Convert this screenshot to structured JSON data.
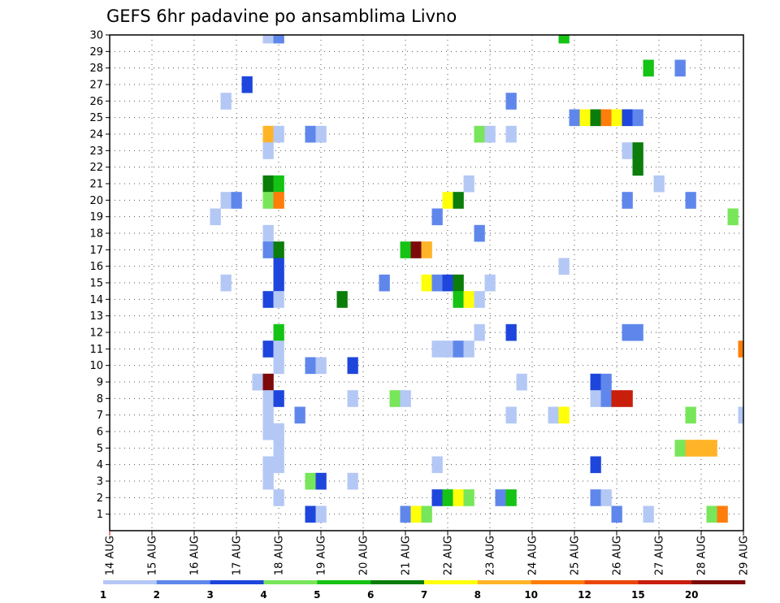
{
  "chart_data": {
    "type": "heatmap",
    "title": "GEFS 6hr padavine po ansamblima Livno",
    "xlabel": "",
    "ylabel": "",
    "x_tick_labels": [
      "14 AUG",
      "15 AUG",
      "16 AUG",
      "17 AUG",
      "18 AUG",
      "19 AUG",
      "20 AUG",
      "21 AUG",
      "22 AUG",
      "23 AUG",
      "24 AUG",
      "25 AUG",
      "26 AUG",
      "27 AUG",
      "28 AUG",
      "29 AUG"
    ],
    "y_tick_labels": [
      "1",
      "2",
      "3",
      "4",
      "5",
      "6",
      "7",
      "8",
      "9",
      "10",
      "11",
      "12",
      "13",
      "14",
      "15",
      "16",
      "17",
      "18",
      "19",
      "20",
      "21",
      "22",
      "23",
      "24",
      "25",
      "26",
      "27",
      "28",
      "29",
      "30"
    ],
    "xlim": [
      "14 AUG 00z",
      "29 AUG 00z"
    ],
    "ylim": [
      0,
      30
    ],
    "grid": true,
    "legend": {
      "placement": "bottom",
      "labels": [
        "1",
        "2",
        "3",
        "4",
        "5",
        "6",
        "7",
        "8",
        "10",
        "12",
        "15",
        "20"
      ],
      "colors": [
        "#b4c8f5",
        "#5f87eb",
        "#1e46dc",
        "#78e65a",
        "#14c314",
        "#0a7d0a",
        "#ffff0a",
        "#ffb428",
        "#ff7d0a",
        "#eb460a",
        "#c81e0a",
        "#7d0a0a"
      ]
    },
    "time_step": "6hr",
    "cells": [
      {
        "x": "17 AUG 18z",
        "member": 30,
        "value": 1
      },
      {
        "x": "18 AUG 00z",
        "member": 30,
        "value": 2
      },
      {
        "x": "24 AUG 18z",
        "member": 30,
        "value": 5
      },
      {
        "x": "26 AUG 18z",
        "member": 28,
        "value": 5
      },
      {
        "x": "27 AUG 12z",
        "member": 28,
        "value": 2
      },
      {
        "x": "17 AUG 06z",
        "member": 27,
        "value": 3
      },
      {
        "x": "16 AUG 18z",
        "member": 26,
        "value": 1
      },
      {
        "x": "23 AUG 12z",
        "member": 26,
        "value": 2
      },
      {
        "x": "25 AUG 00z",
        "member": 25,
        "value": 2
      },
      {
        "x": "25 AUG 06z",
        "member": 25,
        "value": 7
      },
      {
        "x": "25 AUG 12z",
        "member": 25,
        "value": 6
      },
      {
        "x": "25 AUG 18z",
        "member": 25,
        "value": 10
      },
      {
        "x": "26 AUG 00z",
        "member": 25,
        "value": 7
      },
      {
        "x": "26 AUG 06z",
        "member": 25,
        "value": 3
      },
      {
        "x": "26 AUG 12z",
        "member": 25,
        "value": 2
      },
      {
        "x": "17 AUG 18z",
        "member": 24,
        "value": 8
      },
      {
        "x": "18 AUG 00z",
        "member": 24,
        "value": 1
      },
      {
        "x": "18 AUG 18z",
        "member": 24,
        "value": 2
      },
      {
        "x": "19 AUG 00z",
        "member": 24,
        "value": 1
      },
      {
        "x": "22 AUG 18z",
        "member": 24,
        "value": 4
      },
      {
        "x": "23 AUG 00z",
        "member": 24,
        "value": 1
      },
      {
        "x": "23 AUG 12z",
        "member": 24,
        "value": 1
      },
      {
        "x": "17 AUG 18z",
        "member": 23,
        "value": 1
      },
      {
        "x": "26 AUG 06z",
        "member": 23,
        "value": 1
      },
      {
        "x": "26 AUG 12z",
        "member": 23,
        "value": 6
      },
      {
        "x": "26 AUG 12z",
        "member": 22,
        "value": 6
      },
      {
        "x": "17 AUG 18z",
        "member": 21,
        "value": 6
      },
      {
        "x": "18 AUG 00z",
        "member": 21,
        "value": 5
      },
      {
        "x": "22 AUG 12z",
        "member": 21,
        "value": 1
      },
      {
        "x": "27 AUG 00z",
        "member": 21,
        "value": 1
      },
      {
        "x": "16 AUG 18z",
        "member": 20,
        "value": 1
      },
      {
        "x": "17 AUG 00z",
        "member": 20,
        "value": 2
      },
      {
        "x": "17 AUG 18z",
        "member": 20,
        "value": 4
      },
      {
        "x": "18 AUG 00z",
        "member": 20,
        "value": 10
      },
      {
        "x": "22 AUG 00z",
        "member": 20,
        "value": 7
      },
      {
        "x": "22 AUG 06z",
        "member": 20,
        "value": 6
      },
      {
        "x": "26 AUG 06z",
        "member": 20,
        "value": 2
      },
      {
        "x": "27 AUG 18z",
        "member": 20,
        "value": 2
      },
      {
        "x": "21 AUG 18z",
        "member": 19,
        "value": 2
      },
      {
        "x": "16 AUG 12z",
        "member": 19,
        "value": 1
      },
      {
        "x": "28 AUG 18z",
        "member": 19,
        "value": 4
      },
      {
        "x": "17 AUG 18z",
        "member": 18,
        "value": 1
      },
      {
        "x": "22 AUG 18z",
        "member": 18,
        "value": 2
      },
      {
        "x": "17 AUG 18z",
        "member": 17,
        "value": 2
      },
      {
        "x": "18 AUG 00z",
        "member": 17,
        "value": 6
      },
      {
        "x": "21 AUG 00z",
        "member": 17,
        "value": 5
      },
      {
        "x": "21 AUG 06z",
        "member": 17,
        "value": 20
      },
      {
        "x": "21 AUG 12z",
        "member": 17,
        "value": 8
      },
      {
        "x": "18 AUG 00z",
        "member": 16,
        "value": 3
      },
      {
        "x": "24 AUG 18z",
        "member": 16,
        "value": 1
      },
      {
        "x": "18 AUG 00z",
        "member": 15,
        "value": 3
      },
      {
        "x": "16 AUG 18z",
        "member": 15,
        "value": 1
      },
      {
        "x": "20 AUG 12z",
        "member": 15,
        "value": 2
      },
      {
        "x": "21 AUG 12z",
        "member": 15,
        "value": 7
      },
      {
        "x": "21 AUG 18z",
        "member": 15,
        "value": 2
      },
      {
        "x": "22 AUG 00z",
        "member": 15,
        "value": 3
      },
      {
        "x": "22 AUG 06z",
        "member": 15,
        "value": 6
      },
      {
        "x": "23 AUG 00z",
        "member": 15,
        "value": 1
      },
      {
        "x": "17 AUG 18z",
        "member": 14,
        "value": 3
      },
      {
        "x": "18 AUG 00z",
        "member": 14,
        "value": 1
      },
      {
        "x": "19 AUG 12z",
        "member": 14,
        "value": 6
      },
      {
        "x": "22 AUG 06z",
        "member": 14,
        "value": 5
      },
      {
        "x": "22 AUG 12z",
        "member": 14,
        "value": 7
      },
      {
        "x": "22 AUG 18z",
        "member": 14,
        "value": 1
      },
      {
        "x": "18 AUG 00z",
        "member": 12,
        "value": 5
      },
      {
        "x": "22 AUG 18z",
        "member": 12,
        "value": 1
      },
      {
        "x": "23 AUG 12z",
        "member": 12,
        "value": 3
      },
      {
        "x": "26 AUG 06z",
        "member": 12,
        "value": 2
      },
      {
        "x": "26 AUG 12z",
        "member": 12,
        "value": 2
      },
      {
        "x": "17 AUG 18z",
        "member": 11,
        "value": 3
      },
      {
        "x": "18 AUG 00z",
        "member": 11,
        "value": 1
      },
      {
        "x": "21 AUG 18z",
        "member": 11,
        "value": 1
      },
      {
        "x": "22 AUG 00z",
        "member": 11,
        "value": 1
      },
      {
        "x": "22 AUG 06z",
        "member": 11,
        "value": 2
      },
      {
        "x": "22 AUG 12z",
        "member": 11,
        "value": 1
      },
      {
        "x": "29 AUG 00z",
        "member": 11,
        "value": 10
      },
      {
        "x": "18 AUG 00z",
        "member": 10,
        "value": 1
      },
      {
        "x": "18 AUG 18z",
        "member": 10,
        "value": 2
      },
      {
        "x": "19 AUG 00z",
        "member": 10,
        "value": 1
      },
      {
        "x": "19 AUG 18z",
        "member": 10,
        "value": 3
      },
      {
        "x": "17 AUG 12z",
        "member": 9,
        "value": 1
      },
      {
        "x": "17 AUG 18z",
        "member": 9,
        "value": 20
      },
      {
        "x": "23 AUG 18z",
        "member": 9,
        "value": 1
      },
      {
        "x": "25 AUG 12z",
        "member": 9,
        "value": 3
      },
      {
        "x": "25 AUG 18z",
        "member": 9,
        "value": 2
      },
      {
        "x": "17 AUG 18z",
        "member": 8,
        "value": 1
      },
      {
        "x": "18 AUG 00z",
        "member": 8,
        "value": 3
      },
      {
        "x": "19 AUG 18z",
        "member": 8,
        "value": 1
      },
      {
        "x": "20 AUG 18z",
        "member": 8,
        "value": 4
      },
      {
        "x": "21 AUG 00z",
        "member": 8,
        "value": 1
      },
      {
        "x": "25 AUG 12z",
        "member": 8,
        "value": 1
      },
      {
        "x": "25 AUG 18z",
        "member": 8,
        "value": 2
      },
      {
        "x": "26 AUG 00z",
        "member": 8,
        "value": 15
      },
      {
        "x": "26 AUG 06z",
        "member": 8,
        "value": 15
      },
      {
        "x": "17 AUG 18z",
        "member": 7,
        "value": 1
      },
      {
        "x": "18 AUG 12z",
        "member": 7,
        "value": 2
      },
      {
        "x": "23 AUG 12z",
        "member": 7,
        "value": 1
      },
      {
        "x": "24 AUG 12z",
        "member": 7,
        "value": 1
      },
      {
        "x": "24 AUG 18z",
        "member": 7,
        "value": 7
      },
      {
        "x": "27 AUG 18z",
        "member": 7,
        "value": 4
      },
      {
        "x": "29 AUG 00z",
        "member": 7,
        "value": 1
      },
      {
        "x": "17 AUG 18z",
        "member": 6,
        "value": 1
      },
      {
        "x": "18 AUG 00z",
        "member": 6,
        "value": 1
      },
      {
        "x": "18 AUG 00z",
        "member": 5,
        "value": 1
      },
      {
        "x": "27 AUG 12z",
        "member": 5,
        "value": 4
      },
      {
        "x": "27 AUG 18z",
        "member": 5,
        "value": 8
      },
      {
        "x": "28 AUG 00z",
        "member": 5,
        "value": 8
      },
      {
        "x": "28 AUG 06z",
        "member": 5,
        "value": 8
      },
      {
        "x": "17 AUG 18z",
        "member": 4,
        "value": 1
      },
      {
        "x": "18 AUG 00z",
        "member": 4,
        "value": 1
      },
      {
        "x": "21 AUG 18z",
        "member": 4,
        "value": 1
      },
      {
        "x": "25 AUG 12z",
        "member": 4,
        "value": 3
      },
      {
        "x": "17 AUG 18z",
        "member": 3,
        "value": 1
      },
      {
        "x": "18 AUG 18z",
        "member": 3,
        "value": 4
      },
      {
        "x": "19 AUG 00z",
        "member": 3,
        "value": 3
      },
      {
        "x": "19 AUG 18z",
        "member": 3,
        "value": 1
      },
      {
        "x": "18 AUG 00z",
        "member": 2,
        "value": 1
      },
      {
        "x": "21 AUG 18z",
        "member": 2,
        "value": 3
      },
      {
        "x": "22 AUG 00z",
        "member": 2,
        "value": 5
      },
      {
        "x": "22 AUG 06z",
        "member": 2,
        "value": 7
      },
      {
        "x": "22 AUG 12z",
        "member": 2,
        "value": 4
      },
      {
        "x": "23 AUG 06z",
        "member": 2,
        "value": 2
      },
      {
        "x": "23 AUG 12z",
        "member": 2,
        "value": 5
      },
      {
        "x": "25 AUG 12z",
        "member": 2,
        "value": 2
      },
      {
        "x": "25 AUG 18z",
        "member": 2,
        "value": 1
      },
      {
        "x": "18 AUG 18z",
        "member": 1,
        "value": 3
      },
      {
        "x": "19 AUG 00z",
        "member": 1,
        "value": 1
      },
      {
        "x": "21 AUG 00z",
        "member": 1,
        "value": 2
      },
      {
        "x": "21 AUG 06z",
        "member": 1,
        "value": 7
      },
      {
        "x": "21 AUG 12z",
        "member": 1,
        "value": 4
      },
      {
        "x": "26 AUG 00z",
        "member": 1,
        "value": 2
      },
      {
        "x": "26 AUG 18z",
        "member": 1,
        "value": 1
      },
      {
        "x": "28 AUG 06z",
        "member": 1,
        "value": 4
      },
      {
        "x": "28 AUG 12z",
        "member": 1,
        "value": 10
      }
    ]
  }
}
